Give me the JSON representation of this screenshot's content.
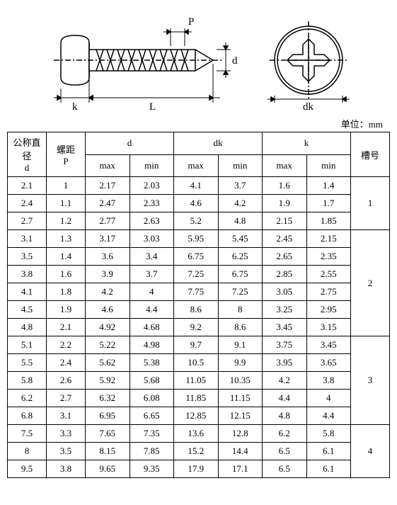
{
  "diagram": {
    "labels": {
      "P": "P",
      "d": "d",
      "k": "k",
      "L": "L",
      "dk": "dk"
    },
    "stroke": "#000000",
    "fill": "#ffffff"
  },
  "unit_label": "单位：mm",
  "headers": {
    "nominal_d": "公称直径\nd",
    "pitch_p": "螺距\nP",
    "d": "d",
    "dk": "dk",
    "k": "k",
    "slot": "槽号",
    "max": "max",
    "min": "min"
  },
  "groups": [
    {
      "slot": "1",
      "rows": [
        {
          "d": "2.1",
          "p": "1",
          "dmax": "2.17",
          "dmin": "2.03",
          "dkmax": "4.1",
          "dkmin": "3.7",
          "kmax": "1.6",
          "kmin": "1.4"
        },
        {
          "d": "2.4",
          "p": "1.1",
          "dmax": "2.47",
          "dmin": "2.33",
          "dkmax": "4.6",
          "dkmin": "4.2",
          "kmax": "1.9",
          "kmin": "1.7"
        },
        {
          "d": "2.7",
          "p": "1.2",
          "dmax": "2.77",
          "dmin": "2.63",
          "dkmax": "5.2",
          "dkmin": "4.8",
          "kmax": "2.15",
          "kmin": "1.85"
        }
      ]
    },
    {
      "slot": "2",
      "rows": [
        {
          "d": "3.1",
          "p": "1.3",
          "dmax": "3.17",
          "dmin": "3.03",
          "dkmax": "5.95",
          "dkmin": "5.45",
          "kmax": "2.45",
          "kmin": "2.15"
        },
        {
          "d": "3.5",
          "p": "1.4",
          "dmax": "3.6",
          "dmin": "3.4",
          "dkmax": "6.75",
          "dkmin": "6.25",
          "kmax": "2.65",
          "kmin": "2.35"
        },
        {
          "d": "3.8",
          "p": "1.6",
          "dmax": "3.9",
          "dmin": "3.7",
          "dkmax": "7.25",
          "dkmin": "6.75",
          "kmax": "2.85",
          "kmin": "2.55"
        },
        {
          "d": "4.1",
          "p": "1.8",
          "dmax": "4.2",
          "dmin": "4",
          "dkmax": "7.75",
          "dkmin": "7.25",
          "kmax": "3.05",
          "kmin": "2.75"
        },
        {
          "d": "4.5",
          "p": "1.9",
          "dmax": "4.6",
          "dmin": "4.4",
          "dkmax": "8.6",
          "dkmin": "8",
          "kmax": "3.25",
          "kmin": "2.95"
        },
        {
          "d": "4.8",
          "p": "2.1",
          "dmax": "4.92",
          "dmin": "4.68",
          "dkmax": "9.2",
          "dkmin": "8.6",
          "kmax": "3.45",
          "kmin": "3.15"
        }
      ]
    },
    {
      "slot": "3",
      "rows": [
        {
          "d": "5.1",
          "p": "2.2",
          "dmax": "5.22",
          "dmin": "4.98",
          "dkmax": "9.7",
          "dkmin": "9.1",
          "kmax": "3.75",
          "kmin": "3.45"
        },
        {
          "d": "5.5",
          "p": "2.4",
          "dmax": "5.62",
          "dmin": "5.38",
          "dkmax": "10.5",
          "dkmin": "9.9",
          "kmax": "3.95",
          "kmin": "3.65"
        },
        {
          "d": "5.8",
          "p": "2.6",
          "dmax": "5.92",
          "dmin": "5.68",
          "dkmax": "11.05",
          "dkmin": "10.35",
          "kmax": "4.2",
          "kmin": "3.8"
        },
        {
          "d": "6.2",
          "p": "2.7",
          "dmax": "6.32",
          "dmin": "6.08",
          "dkmax": "11.85",
          "dkmin": "11.15",
          "kmax": "4.4",
          "kmin": "4"
        },
        {
          "d": "6.8",
          "p": "3.1",
          "dmax": "6.95",
          "dmin": "6.65",
          "dkmax": "12.85",
          "dkmin": "12.15",
          "kmax": "4.8",
          "kmin": "4.4"
        }
      ]
    },
    {
      "slot": "4",
      "rows": [
        {
          "d": "7.5",
          "p": "3.3",
          "dmax": "7.65",
          "dmin": "7.35",
          "dkmax": "13.6",
          "dkmin": "12.8",
          "kmax": "6.2",
          "kmin": "5.8"
        },
        {
          "d": "8",
          "p": "3.5",
          "dmax": "8.15",
          "dmin": "7.85",
          "dkmax": "15.2",
          "dkmin": "14.4",
          "kmax": "6.5",
          "kmin": "6.1"
        },
        {
          "d": "9.5",
          "p": "3.8",
          "dmax": "9.65",
          "dmin": "9.35",
          "dkmax": "17.9",
          "dkmin": "17.1",
          "kmax": "6.5",
          "kmin": "6.1"
        }
      ]
    }
  ]
}
